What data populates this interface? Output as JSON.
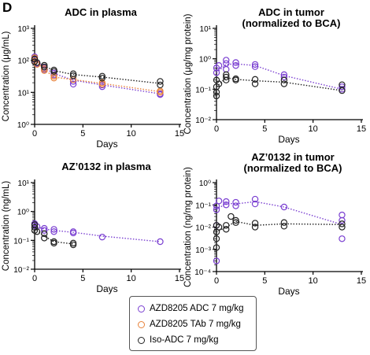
{
  "panel_label": "D",
  "series_styles": [
    {
      "name": "AZD8205 ADC 7 mg/kg",
      "color": "#7a3fd1"
    },
    {
      "name": "AZD8205 TAb 7 mg/kg",
      "color": "#e8823a"
    },
    {
      "name": "Iso-ADC 7 mg/kg",
      "color": "#222222"
    }
  ],
  "legend": {
    "items": [
      "AZD8205 ADC 7 mg/kg",
      "AZD8205 TAb 7 mg/kg",
      "Iso-ADC 7 mg/kg"
    ]
  },
  "chart_data": [
    {
      "type": "scatter",
      "title": "ADC in plasma",
      "xlabel": "Days",
      "ylabel": "Concentration (μg/mL)",
      "xlim": [
        0,
        15
      ],
      "xticks": [
        0,
        5,
        10,
        15
      ],
      "y_scale": "log",
      "ylim": [
        1,
        1000
      ],
      "ytick_labels": [
        "10⁰",
        "10¹",
        "10²",
        "10³"
      ],
      "yticks": [
        1,
        10,
        100,
        1000
      ],
      "series": [
        {
          "name": "AZD8205 ADC 7 mg/kg",
          "color": "#7a3fd1",
          "points": [
            [
              0,
              130
            ],
            [
              0,
              105
            ],
            [
              0,
              90
            ],
            [
              0.25,
              80
            ],
            [
              1,
              60
            ],
            [
              1,
              52
            ],
            [
              2,
              40
            ],
            [
              2,
              35
            ],
            [
              4,
              22
            ],
            [
              4,
              18
            ],
            [
              7,
              17
            ],
            [
              7,
              15
            ],
            [
              13,
              9
            ],
            [
              13,
              8.5
            ]
          ],
          "trend": [
            [
              0,
              115
            ],
            [
              1,
              58
            ],
            [
              2,
              39
            ],
            [
              4,
              24
            ],
            [
              7,
              17
            ],
            [
              13,
              9
            ]
          ]
        },
        {
          "name": "AZD8205 TAb 7 mg/kg",
          "color": "#e8823a",
          "points": [
            [
              0,
              120
            ],
            [
              0,
              95
            ],
            [
              0.25,
              75
            ],
            [
              1,
              55
            ],
            [
              1,
              48
            ],
            [
              2,
              32
            ],
            [
              2,
              28
            ],
            [
              4,
              25
            ],
            [
              7,
              20
            ],
            [
              7,
              18
            ],
            [
              13,
              11
            ],
            [
              13,
              10
            ]
          ],
          "trend": [
            [
              0,
              105
            ],
            [
              1,
              52
            ],
            [
              2,
              30
            ],
            [
              4,
              25
            ],
            [
              7,
              19
            ],
            [
              13,
              10.5
            ]
          ]
        },
        {
          "name": "Iso-ADC 7 mg/kg",
          "color": "#222222",
          "points": [
            [
              0,
              110
            ],
            [
              0,
              90
            ],
            [
              0.25,
              85
            ],
            [
              1,
              70
            ],
            [
              1,
              62
            ],
            [
              2,
              50
            ],
            [
              2,
              45
            ],
            [
              4,
              38
            ],
            [
              4,
              33
            ],
            [
              7,
              32
            ],
            [
              7,
              28
            ],
            [
              13,
              22
            ],
            [
              13,
              17
            ]
          ],
          "trend": [
            [
              0,
              100
            ],
            [
              1,
              66
            ],
            [
              2,
              48
            ],
            [
              4,
              36
            ],
            [
              7,
              30
            ],
            [
              13,
              19
            ]
          ]
        }
      ]
    },
    {
      "type": "scatter",
      "title": "ADC in tumor\n(normalized to BCA)",
      "xlabel": "Days",
      "ylabel": "Concentration (μg/mg protein)",
      "xlim": [
        0,
        15
      ],
      "xticks": [
        0,
        5,
        10,
        15
      ],
      "y_scale": "log",
      "ylim": [
        0.01,
        10
      ],
      "ytick_labels": [
        "10⁻²",
        "10⁻¹",
        "10⁰",
        "10¹"
      ],
      "yticks": [
        0.01,
        0.1,
        1,
        10
      ],
      "series": [
        {
          "name": "AZD8205 ADC 7 mg/kg",
          "color": "#7a3fd1",
          "points": [
            [
              0,
              0.5
            ],
            [
              0,
              0.35
            ],
            [
              0.25,
              0.6
            ],
            [
              1,
              0.9
            ],
            [
              1,
              0.7
            ],
            [
              1,
              0.45
            ],
            [
              2,
              0.75
            ],
            [
              2,
              0.6
            ],
            [
              4,
              0.65
            ],
            [
              4,
              0.55
            ],
            [
              7,
              0.3
            ],
            [
              7,
              0.25
            ],
            [
              13,
              0.12
            ],
            [
              13,
              0.1
            ]
          ],
          "trend": [
            [
              0,
              0.35
            ],
            [
              1,
              0.65
            ],
            [
              2,
              0.68
            ],
            [
              4,
              0.6
            ],
            [
              7,
              0.28
            ],
            [
              13,
              0.1
            ]
          ]
        },
        {
          "name": "Iso-ADC 7 mg/kg",
          "color": "#222222",
          "points": [
            [
              0,
              0.2
            ],
            [
              0,
              0.12
            ],
            [
              0,
              0.08
            ],
            [
              0,
              0.06
            ],
            [
              0.25,
              0.15
            ],
            [
              1,
              0.3
            ],
            [
              1,
              0.25
            ],
            [
              1,
              0.2
            ],
            [
              2,
              0.22
            ],
            [
              2,
              0.2
            ],
            [
              4,
              0.21
            ],
            [
              4,
              0.15
            ],
            [
              7,
              0.2
            ],
            [
              7,
              0.15
            ],
            [
              13,
              0.14
            ],
            [
              13,
              0.09
            ]
          ],
          "trend": [
            [
              0,
              0.12
            ],
            [
              1,
              0.24
            ],
            [
              2,
              0.21
            ],
            [
              4,
              0.19
            ],
            [
              7,
              0.17
            ],
            [
              13,
              0.09
            ]
          ]
        }
      ]
    },
    {
      "type": "scatter",
      "title": "AZ’0132 in plasma",
      "xlabel": "Days",
      "ylabel": "Concentration (ng/mL)",
      "xlim": [
        0,
        15
      ],
      "xticks": [
        0,
        5,
        10,
        15
      ],
      "y_scale": "log",
      "ylim": [
        0.01,
        10
      ],
      "ytick_labels": [
        "10⁻²",
        "10⁻¹",
        "10⁰",
        "10¹"
      ],
      "yticks": [
        0.01,
        0.1,
        1,
        10
      ],
      "series": [
        {
          "name": "AZD8205 ADC 7 mg/kg",
          "color": "#7a3fd1",
          "points": [
            [
              0,
              0.38
            ],
            [
              0,
              0.32
            ],
            [
              0.25,
              0.3
            ],
            [
              1,
              0.26
            ],
            [
              1,
              0.22
            ],
            [
              2,
              0.24
            ],
            [
              2,
              0.2
            ],
            [
              4,
              0.2
            ],
            [
              4,
              0.18
            ],
            [
              7,
              0.13
            ],
            [
              13,
              0.09
            ]
          ],
          "trend": [
            [
              0,
              0.3
            ],
            [
              1,
              0.25
            ],
            [
              2,
              0.22
            ],
            [
              4,
              0.19
            ],
            [
              7,
              0.14
            ],
            [
              13,
              0.09
            ]
          ]
        },
        {
          "name": "Iso-ADC 7 mg/kg",
          "color": "#222222",
          "points": [
            [
              0,
              0.35
            ],
            [
              0,
              0.28
            ],
            [
              0,
              0.22
            ],
            [
              0.25,
              0.2
            ],
            [
              1,
              0.17
            ],
            [
              1,
              0.12
            ],
            [
              2,
              0.09
            ],
            [
              2,
              0.08
            ],
            [
              4,
              0.08
            ],
            [
              4,
              0.07
            ]
          ],
          "trend": [
            [
              0,
              0.26
            ],
            [
              1,
              0.14
            ],
            [
              2,
              0.09
            ],
            [
              4,
              0.075
            ]
          ]
        }
      ]
    },
    {
      "type": "scatter",
      "title": "AZ’0132 in tumor\n(normalized to BCA)",
      "xlabel": "Days",
      "ylabel": "Concentration (ng/mg protein)",
      "xlim": [
        0,
        15
      ],
      "xticks": [
        0,
        5,
        10,
        15
      ],
      "y_scale": "log",
      "ylim": [
        0.0001,
        1
      ],
      "ytick_labels": [
        "10⁻⁴",
        "10⁻³",
        "10⁻²",
        "10⁻¹",
        "10⁰"
      ],
      "yticks": [
        0.0001,
        0.001,
        0.01,
        0.1,
        1
      ],
      "series": [
        {
          "name": "AZD8205 ADC 7 mg/kg",
          "color": "#7a3fd1",
          "points": [
            [
              0,
              0.09
            ],
            [
              0,
              0.06
            ],
            [
              0,
              0.012
            ],
            [
              0,
              0.0003
            ],
            [
              0.25,
              0.15
            ],
            [
              1,
              0.14
            ],
            [
              1,
              0.1
            ],
            [
              2,
              0.13
            ],
            [
              2,
              0.09
            ],
            [
              4,
              0.18
            ],
            [
              4,
              0.11
            ],
            [
              7,
              0.08
            ],
            [
              13,
              0.035
            ],
            [
              13,
              0.02
            ],
            [
              13,
              0.003
            ]
          ],
          "trend": [
            [
              0,
              0.06
            ],
            [
              1,
              0.12
            ],
            [
              2,
              0.11
            ],
            [
              4,
              0.14
            ],
            [
              7,
              0.08
            ],
            [
              13,
              0.013
            ]
          ]
        },
        {
          "name": "Iso-ADC 7 mg/kg",
          "color": "#222222",
          "points": [
            [
              0,
              0.012
            ],
            [
              0,
              0.006
            ],
            [
              0,
              0.003
            ],
            [
              0,
              0.0012
            ],
            [
              0.25,
              0.01
            ],
            [
              1,
              0.012
            ],
            [
              1,
              0.008
            ],
            [
              1.5,
              0.03
            ],
            [
              2,
              0.02
            ],
            [
              2,
              0.016
            ],
            [
              4,
              0.015
            ],
            [
              4,
              0.01
            ],
            [
              7,
              0.016
            ],
            [
              7,
              0.011
            ],
            [
              13,
              0.014
            ],
            [
              13,
              0.01
            ]
          ],
          "trend": [
            [
              0,
              0.006
            ],
            [
              1,
              0.01
            ],
            [
              2,
              0.018
            ],
            [
              4,
              0.012
            ],
            [
              7,
              0.014
            ],
            [
              13,
              0.013
            ]
          ]
        }
      ]
    }
  ]
}
